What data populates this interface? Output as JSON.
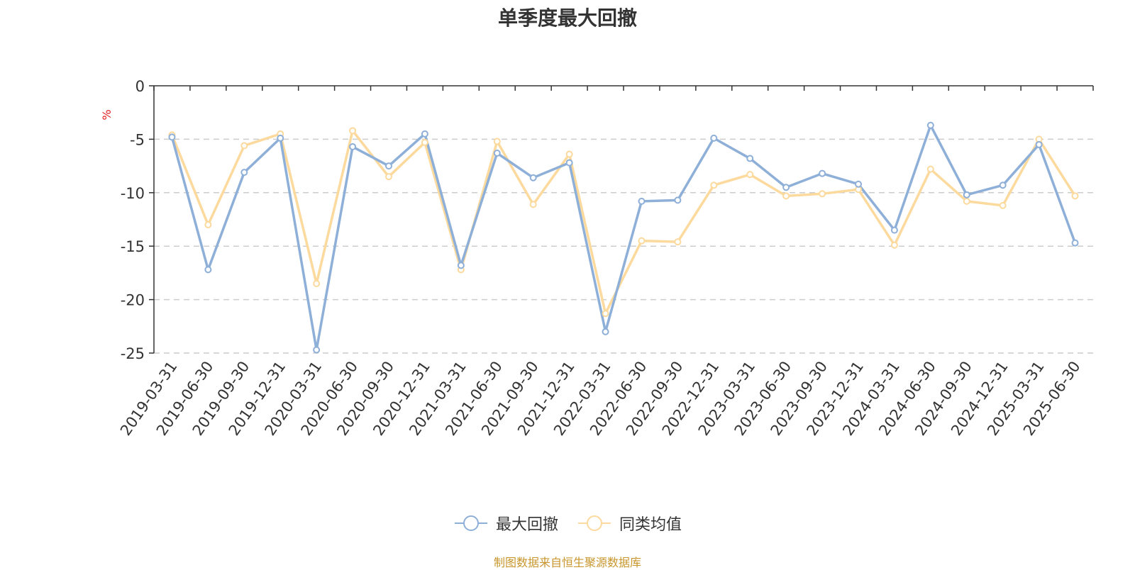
{
  "chart_data": {
    "type": "line",
    "title": "单季度最大回撤",
    "ylabel": "%",
    "ylim": [
      -25,
      0
    ],
    "yticks": [
      0,
      -5,
      -10,
      -15,
      -20,
      -25
    ],
    "grid": "horizontal dashed",
    "legend_position": "bottom-center",
    "categories": [
      "2019-03-31",
      "2019-06-30",
      "2019-09-30",
      "2019-12-31",
      "2020-03-31",
      "2020-06-30",
      "2020-09-30",
      "2020-12-31",
      "2021-03-31",
      "2021-06-30",
      "2021-09-30",
      "2021-12-31",
      "2022-03-31",
      "2022-06-30",
      "2022-09-30",
      "2022-12-31",
      "2023-03-31",
      "2023-06-30",
      "2023-09-30",
      "2023-12-31",
      "2024-03-31",
      "2024-06-30",
      "2024-09-30",
      "2024-12-31",
      "2025-03-31",
      "2025-06-30"
    ],
    "series": [
      {
        "name": "最大回撤",
        "color": "#8eafd8",
        "values": [
          -4.8,
          -17.2,
          -8.1,
          -4.9,
          -24.7,
          -5.7,
          -7.5,
          -4.5,
          -16.8,
          -6.3,
          -8.6,
          -7.2,
          -23.0,
          -10.8,
          -10.7,
          -4.9,
          -6.8,
          -9.5,
          -8.2,
          -9.2,
          -13.5,
          -3.7,
          -10.2,
          -9.3,
          -5.5,
          -14.7
        ]
      },
      {
        "name": "同类均值",
        "color": "#fcd99c",
        "values": [
          -4.6,
          -13.0,
          -5.6,
          -4.5,
          -18.5,
          -4.2,
          -8.5,
          -5.3,
          -17.2,
          -5.2,
          -11.1,
          -6.4,
          -21.3,
          -14.5,
          -14.6,
          -9.3,
          -8.3,
          -10.3,
          -10.1,
          -9.7,
          -14.9,
          -7.8,
          -10.8,
          -11.2,
          -5.0,
          -10.3
        ]
      }
    ]
  },
  "source_note": "制图数据来自恒生聚源数据库"
}
